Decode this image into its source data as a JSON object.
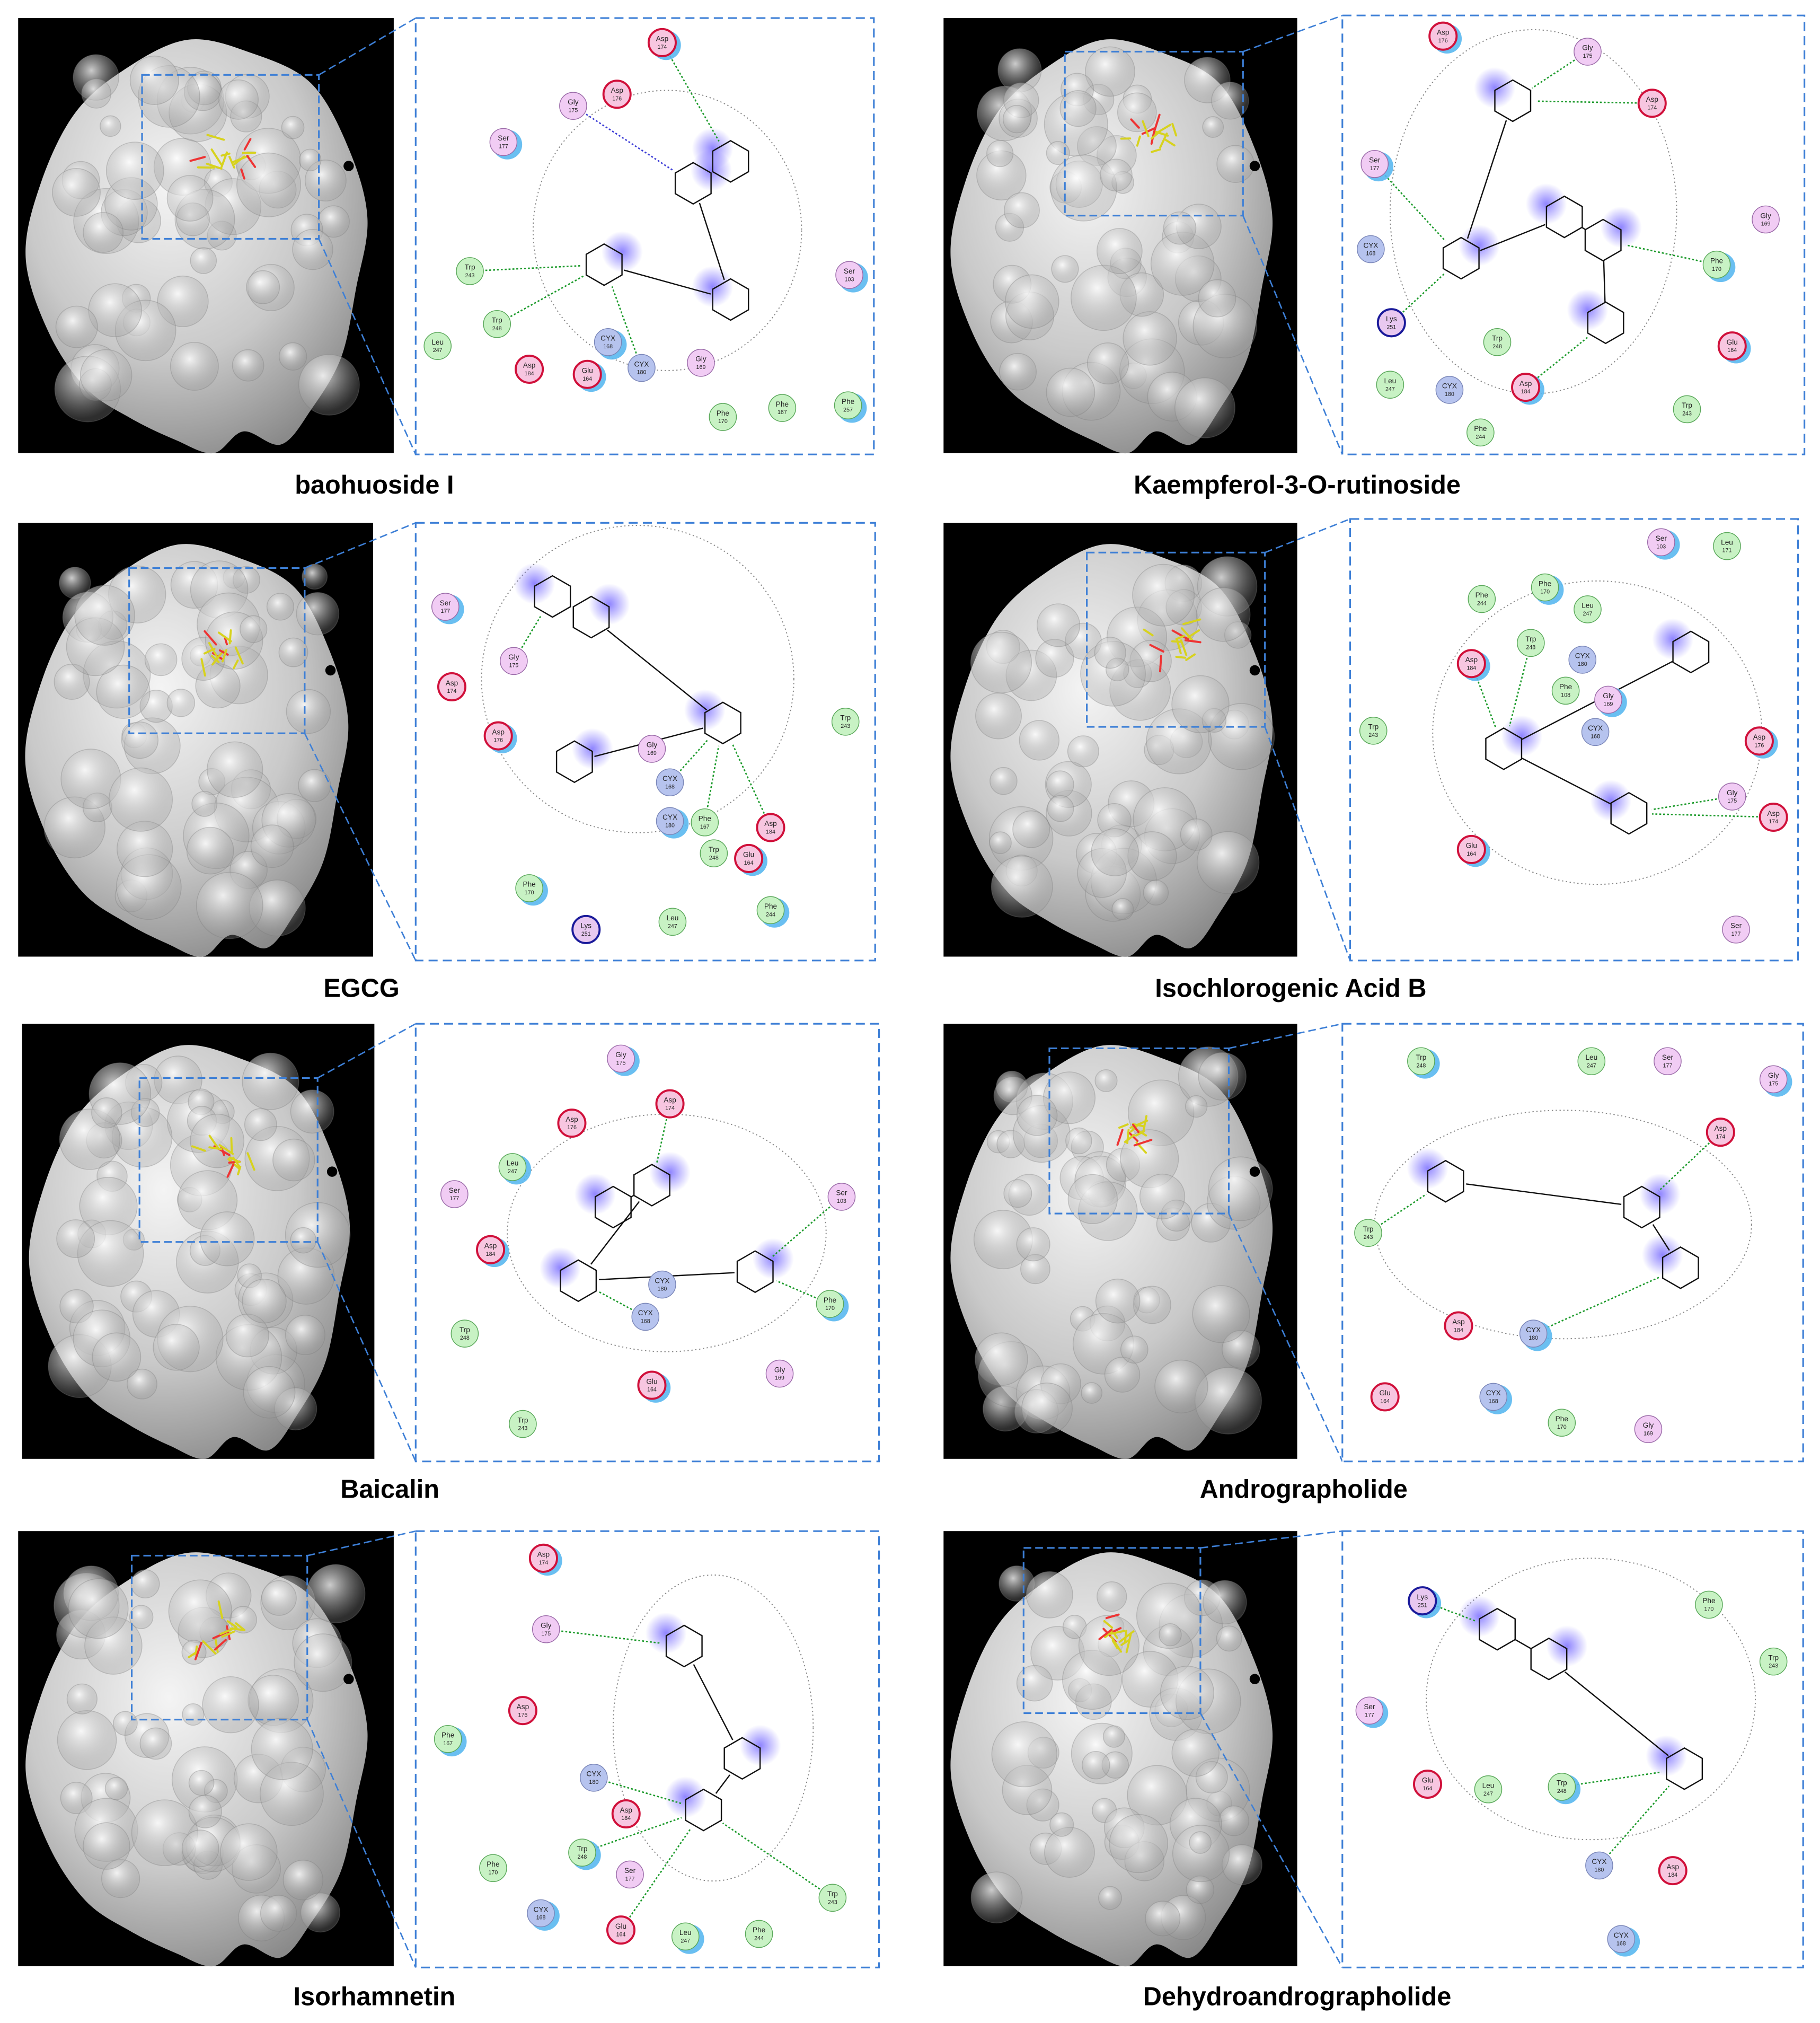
{
  "panels": [
    {
      "caption": "baohuoside I",
      "residues": [
        {
          "name": "Asp",
          "number": 174
        },
        {
          "name": "Asp",
          "number": 176
        },
        {
          "name": "Gly",
          "number": 175
        },
        {
          "name": "Ser",
          "number": 177
        },
        {
          "name": "Trp",
          "number": 243
        },
        {
          "name": "Trp",
          "number": 248
        },
        {
          "name": "CYX",
          "number": 168
        },
        {
          "name": "Leu",
          "number": 247
        },
        {
          "name": "Asp",
          "number": 184
        },
        {
          "name": "Glu",
          "number": 164
        },
        {
          "name": "CYX",
          "number": 180
        },
        {
          "name": "Gly",
          "number": 169
        },
        {
          "name": "Ser",
          "number": 103
        },
        {
          "name": "Phe",
          "number": 170
        },
        {
          "name": "Phe",
          "number": 167
        },
        {
          "name": "Phe",
          "number": 257
        }
      ]
    },
    {
      "caption": "Kaempferol-3-O-rutinoside",
      "residues": [
        {
          "name": "Asp",
          "number": 176
        },
        {
          "name": "Gly",
          "number": 175
        },
        {
          "name": "Asp",
          "number": 174
        },
        {
          "name": "Ser",
          "number": 177
        },
        {
          "name": "CYX",
          "number": 168
        },
        {
          "name": "Gly",
          "number": 169
        },
        {
          "name": "Phe",
          "number": 170
        },
        {
          "name": "Lys",
          "number": 251
        },
        {
          "name": "Trp",
          "number": 248
        },
        {
          "name": "Glu",
          "number": 164
        },
        {
          "name": "Leu",
          "number": 247
        },
        {
          "name": "CYX",
          "number": 180
        },
        {
          "name": "Asp",
          "number": 184
        },
        {
          "name": "Phe",
          "number": 244
        },
        {
          "name": "Trp",
          "number": 243
        }
      ]
    },
    {
      "caption": "EGCG",
      "residues": [
        {
          "name": "Ser",
          "number": 177
        },
        {
          "name": "Gly",
          "number": 175
        },
        {
          "name": "Asp",
          "number": 174
        },
        {
          "name": "Asp",
          "number": 176
        },
        {
          "name": "Gly",
          "number": 169
        },
        {
          "name": "CYX",
          "number": 168
        },
        {
          "name": "CYX",
          "number": 180
        },
        {
          "name": "Phe",
          "number": 167
        },
        {
          "name": "Trp",
          "number": 248
        },
        {
          "name": "Glu",
          "number": 164
        },
        {
          "name": "Asp",
          "number": 184
        },
        {
          "name": "Trp",
          "number": 243
        },
        {
          "name": "Phe",
          "number": 170
        },
        {
          "name": "Lys",
          "number": 251
        },
        {
          "name": "Leu",
          "number": 247
        },
        {
          "name": "Phe",
          "number": 244
        }
      ]
    },
    {
      "caption": "Isochlorogenic Acid B",
      "residues": [
        {
          "name": "Ser",
          "number": 103
        },
        {
          "name": "Leu",
          "number": 171
        },
        {
          "name": "Phe",
          "number": 244
        },
        {
          "name": "Phe",
          "number": 170
        },
        {
          "name": "Leu",
          "number": 247
        },
        {
          "name": "Trp",
          "number": 248
        },
        {
          "name": "Asp",
          "number": 184
        },
        {
          "name": "CYX",
          "number": 180
        },
        {
          "name": "Phe",
          "number": 108
        },
        {
          "name": "Gly",
          "number": 169
        },
        {
          "name": "CYX",
          "number": 168
        },
        {
          "name": "Trp",
          "number": 243
        },
        {
          "name": "Asp",
          "number": 176
        },
        {
          "name": "Gly",
          "number": 175
        },
        {
          "name": "Asp",
          "number": 174
        },
        {
          "name": "Glu",
          "number": 164
        },
        {
          "name": "Ser",
          "number": 177
        }
      ]
    },
    {
      "caption": "Baicalin",
      "residues": [
        {
          "name": "Gly",
          "number": 175
        },
        {
          "name": "Asp",
          "number": 174
        },
        {
          "name": "Asp",
          "number": 176
        },
        {
          "name": "Leu",
          "number": 247
        },
        {
          "name": "Ser",
          "number": 177
        },
        {
          "name": "Ser",
          "number": 103
        },
        {
          "name": "Asp",
          "number": 184
        },
        {
          "name": "CYX",
          "number": 180
        },
        {
          "name": "CYX",
          "number": 168
        },
        {
          "name": "Phe",
          "number": 170
        },
        {
          "name": "Trp",
          "number": 248
        },
        {
          "name": "Gly",
          "number": 169
        },
        {
          "name": "Glu",
          "number": 164
        },
        {
          "name": "Trp",
          "number": 243
        }
      ]
    },
    {
      "caption": "Andrographolide",
      "residues": [
        {
          "name": "Trp",
          "number": 248
        },
        {
          "name": "Leu",
          "number": 247
        },
        {
          "name": "Ser",
          "number": 177
        },
        {
          "name": "Gly",
          "number": 175
        },
        {
          "name": "Asp",
          "number": 174
        },
        {
          "name": "Trp",
          "number": 243
        },
        {
          "name": "CYX",
          "number": 180
        },
        {
          "name": "Asp",
          "number": 184
        },
        {
          "name": "Glu",
          "number": 164
        },
        {
          "name": "CYX",
          "number": 168
        },
        {
          "name": "Phe",
          "number": 170
        },
        {
          "name": "Gly",
          "number": 169
        }
      ]
    },
    {
      "caption": "Isorhamnetin",
      "residues": [
        {
          "name": "Asp",
          "number": 174
        },
        {
          "name": "Gly",
          "number": 175
        },
        {
          "name": "Asp",
          "number": 176
        },
        {
          "name": "Phe",
          "number": 167
        },
        {
          "name": "CYX",
          "number": 180
        },
        {
          "name": "Asp",
          "number": 184
        },
        {
          "name": "Trp",
          "number": 248
        },
        {
          "name": "Ser",
          "number": 177
        },
        {
          "name": "Phe",
          "number": 170
        },
        {
          "name": "CYX",
          "number": 168
        },
        {
          "name": "Glu",
          "number": 164
        },
        {
          "name": "Trp",
          "number": 243
        },
        {
          "name": "Leu",
          "number": 247
        },
        {
          "name": "Phe",
          "number": 244
        }
      ]
    },
    {
      "caption": "Dehydroandrographolide",
      "residues": [
        {
          "name": "Lys",
          "number": 251
        },
        {
          "name": "Phe",
          "number": 170
        },
        {
          "name": "Trp",
          "number": 243
        },
        {
          "name": "Ser",
          "number": 177
        },
        {
          "name": "Glu",
          "number": 164
        },
        {
          "name": "Leu",
          "number": 247
        },
        {
          "name": "Trp",
          "number": 248
        },
        {
          "name": "CYX",
          "number": 180
        },
        {
          "name": "Asp",
          "number": 184
        },
        {
          "name": "CYX",
          "number": 168
        }
      ]
    }
  ]
}
